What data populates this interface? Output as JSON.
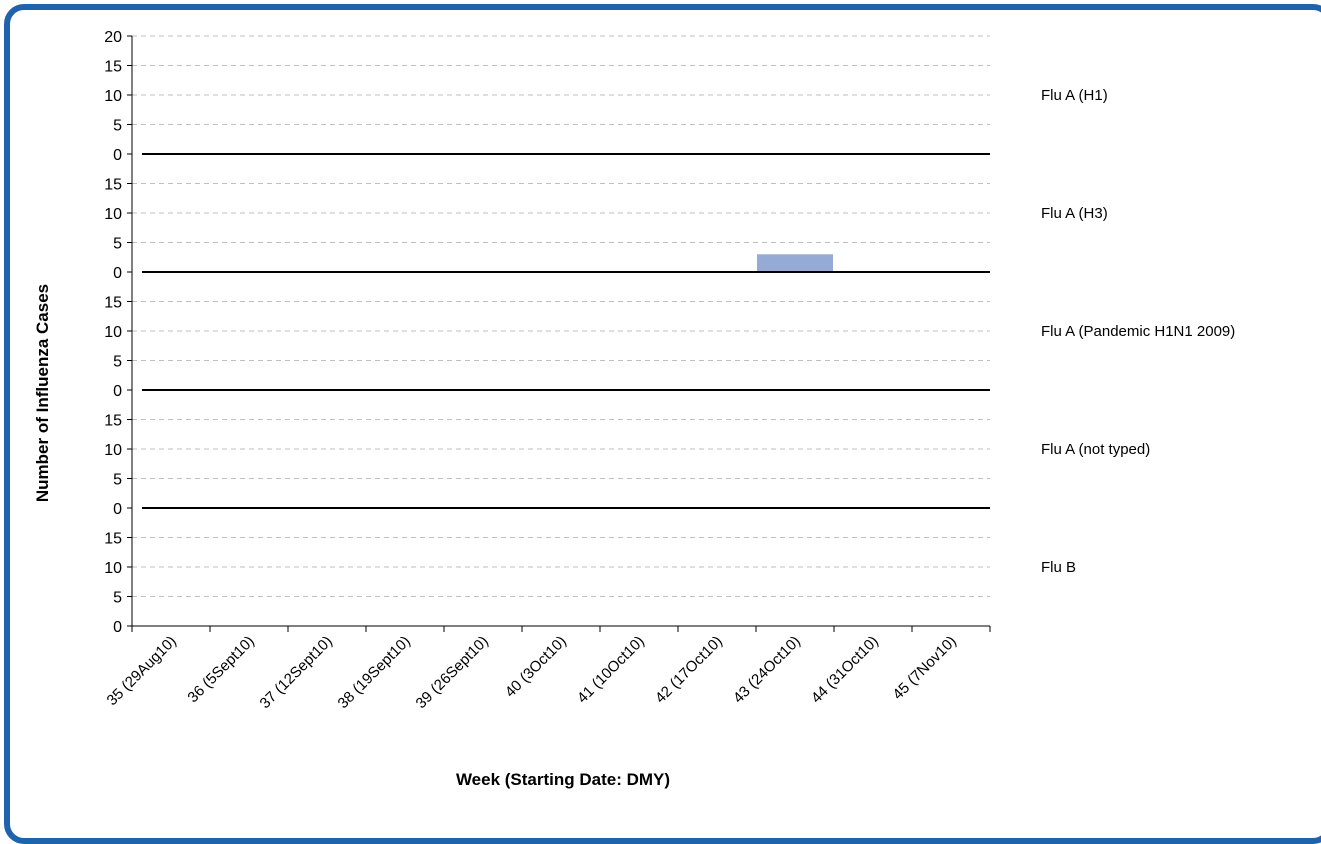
{
  "chart_data": {
    "type": "bar",
    "categories": [
      "35 (29Aug10)",
      "36 (5Sept10)",
      "37 (12Sept10)",
      "38 (19Sept10)",
      "39 (26Sept10)",
      "40 (3Oct10)",
      "41 (10Oct10)",
      "42 (17Oct10)",
      "43 (24Oct10)",
      "44 (31Oct10)",
      "45 (7Nov10)"
    ],
    "series": [
      {
        "name": "Flu A (H1)",
        "values": [
          0,
          0,
          0,
          0,
          0,
          0,
          0,
          0,
          0,
          0,
          0
        ]
      },
      {
        "name": "Flu A (H3)",
        "values": [
          0,
          0,
          0,
          0,
          0,
          0,
          0,
          0,
          3,
          0,
          0
        ]
      },
      {
        "name": "Flu A (Pandemic H1N1 2009)",
        "values": [
          0,
          0,
          0,
          0,
          0,
          0,
          0,
          0,
          0,
          0,
          0
        ]
      },
      {
        "name": "Flu A (not typed)",
        "values": [
          0,
          0,
          0,
          0,
          0,
          0,
          0,
          0,
          0,
          0,
          0
        ]
      },
      {
        "name": "Flu B",
        "values": [
          0,
          0,
          0,
          0,
          0,
          0,
          0,
          0,
          0,
          0,
          0
        ]
      }
    ],
    "panel_ylim": [
      0,
      20
    ],
    "top_panel_ticks": [
      0,
      5,
      10,
      15,
      20
    ],
    "lower_panel_ticks": [
      0,
      5,
      10,
      15
    ],
    "xlabel": "Week (Starting Date: DMY)",
    "ylabel": "Number of Influenza Cases",
    "bar_color": "#95abd5",
    "grid": true,
    "grid_color": "#bfbfbf",
    "legend": "right"
  }
}
